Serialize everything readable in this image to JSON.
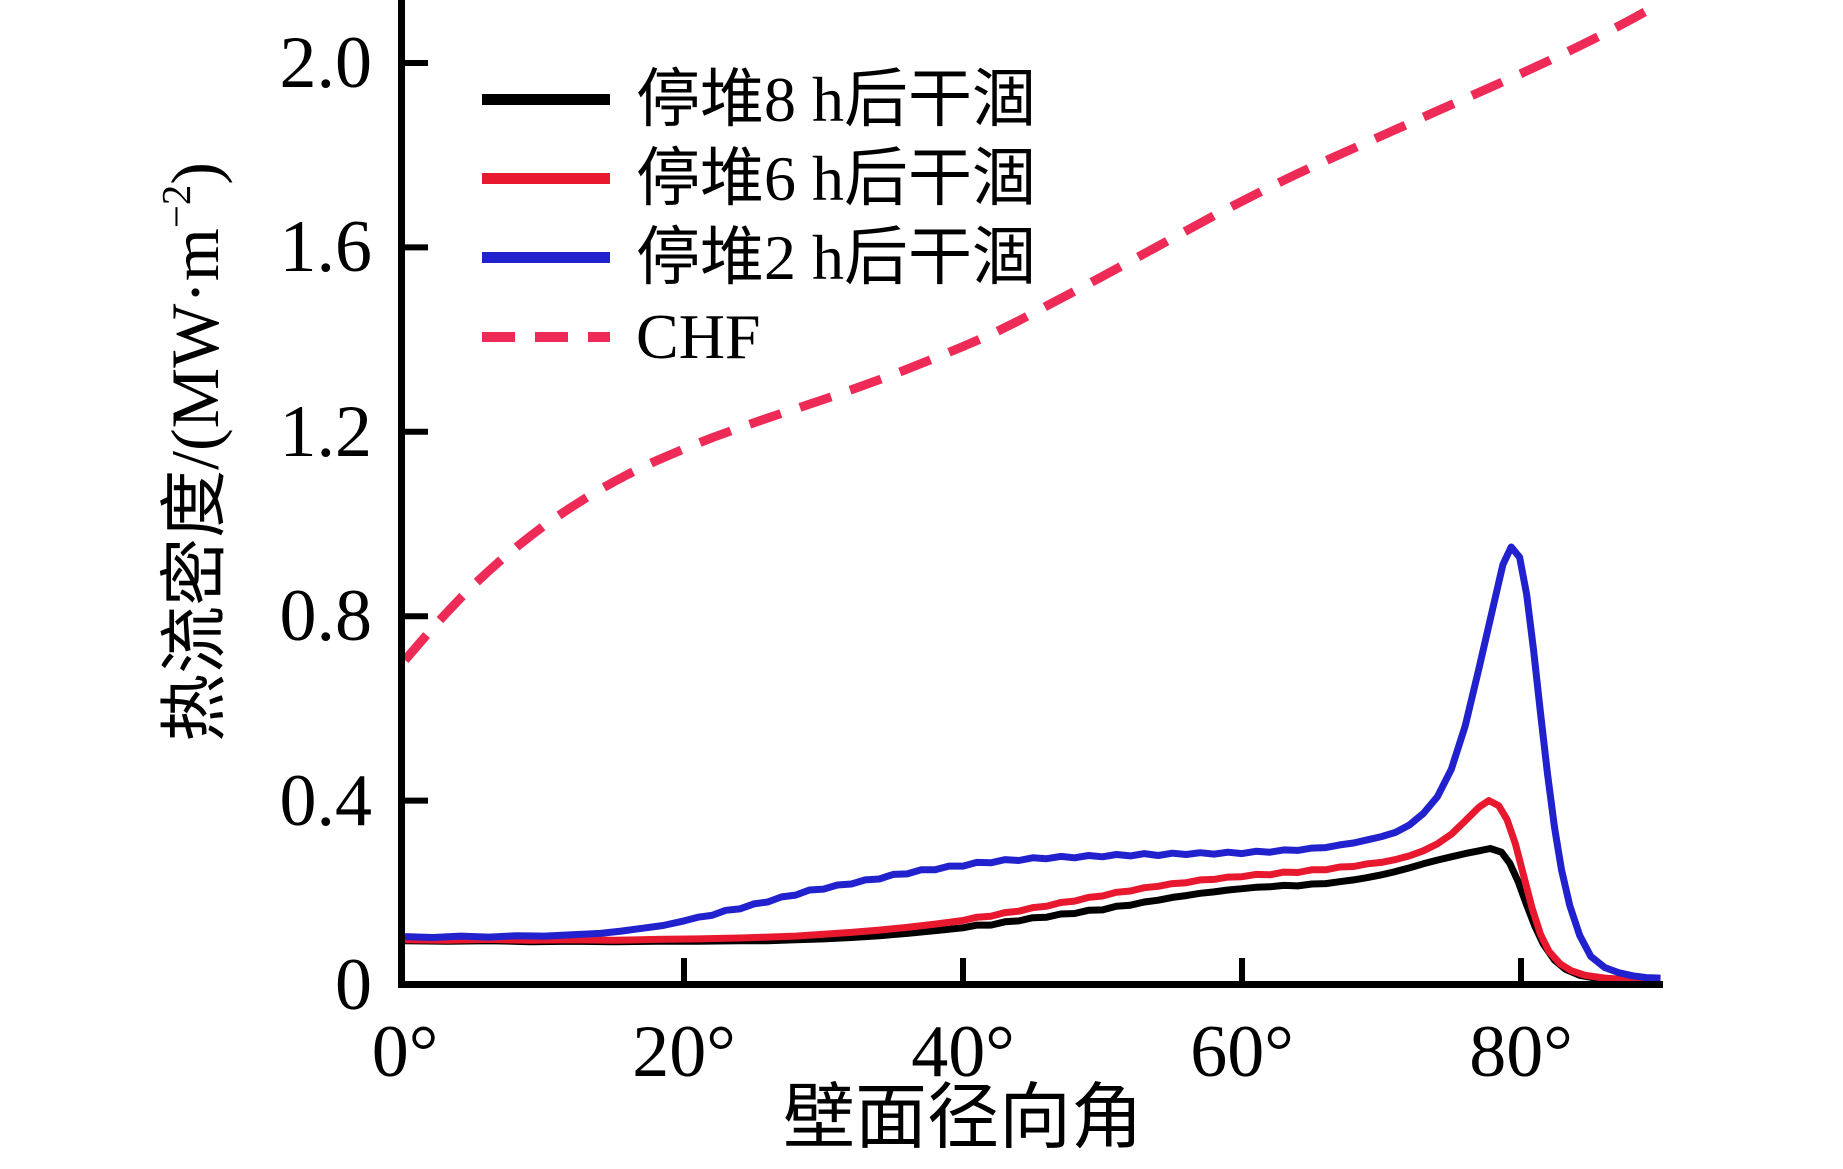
{
  "chart_data": {
    "type": "line",
    "title": "",
    "xlabel": "壁面径向角",
    "ylabel": "热流密度/(MW·m−2)",
    "xlim": [
      0,
      90
    ],
    "ylim": [
      0,
      2.14
    ],
    "grid": false,
    "legend_position": "upper-left-inside",
    "x_ticks": {
      "values": [
        0,
        20,
        40,
        60,
        80
      ],
      "labels": [
        "0°",
        "20°",
        "40°",
        "60°",
        "80°"
      ],
      "marks": [
        20,
        40,
        60,
        80
      ]
    },
    "y_ticks": {
      "values": [
        0,
        0.4,
        0.8,
        1.2,
        1.6,
        2.0
      ],
      "labels": [
        "0",
        "0.4",
        "0.8",
        "1.2",
        "1.6",
        "2.0"
      ],
      "marks": [
        0.4,
        0.8,
        1.2,
        1.6,
        2.0
      ]
    },
    "series": [
      {
        "name": "停堆8 h后干涸",
        "color": "#000000",
        "style": "solid",
        "width": 7,
        "points": [
          [
            0,
            0.096
          ],
          [
            3,
            0.095
          ],
          [
            6,
            0.096
          ],
          [
            9,
            0.094
          ],
          [
            12,
            0.095
          ],
          [
            15,
            0.094
          ],
          [
            18,
            0.095
          ],
          [
            21,
            0.095
          ],
          [
            24,
            0.096
          ],
          [
            26,
            0.096
          ],
          [
            28,
            0.098
          ],
          [
            30,
            0.1
          ],
          [
            32,
            0.103
          ],
          [
            34,
            0.107
          ],
          [
            36,
            0.112
          ],
          [
            38,
            0.118
          ],
          [
            40,
            0.124
          ],
          [
            41,
            0.13
          ],
          [
            42,
            0.13
          ],
          [
            43,
            0.137
          ],
          [
            44,
            0.139
          ],
          [
            45,
            0.146
          ],
          [
            46,
            0.147
          ],
          [
            47,
            0.154
          ],
          [
            48,
            0.155
          ],
          [
            49,
            0.162
          ],
          [
            50,
            0.163
          ],
          [
            51,
            0.171
          ],
          [
            52,
            0.173
          ],
          [
            53,
            0.18
          ],
          [
            54,
            0.184
          ],
          [
            55,
            0.19
          ],
          [
            56,
            0.194
          ],
          [
            57,
            0.199
          ],
          [
            58,
            0.202
          ],
          [
            59,
            0.206
          ],
          [
            60,
            0.209
          ],
          [
            61,
            0.212
          ],
          [
            62,
            0.213
          ],
          [
            63,
            0.216
          ],
          [
            64,
            0.215
          ],
          [
            65,
            0.219
          ],
          [
            66,
            0.22
          ],
          [
            67,
            0.224
          ],
          [
            68,
            0.228
          ],
          [
            69,
            0.233
          ],
          [
            70,
            0.239
          ],
          [
            71,
            0.246
          ],
          [
            72,
            0.254
          ],
          [
            73,
            0.263
          ],
          [
            74,
            0.271
          ],
          [
            75,
            0.278
          ],
          [
            76,
            0.285
          ],
          [
            77,
            0.291
          ],
          [
            77.8,
            0.296
          ],
          [
            78.6,
            0.288
          ],
          [
            79.2,
            0.264
          ],
          [
            79.8,
            0.224
          ],
          [
            80.4,
            0.174
          ],
          [
            81,
            0.127
          ],
          [
            81.6,
            0.089
          ],
          [
            82.4,
            0.054
          ],
          [
            83.2,
            0.034
          ],
          [
            84.2,
            0.021
          ],
          [
            85.5,
            0.014
          ],
          [
            87,
            0.012
          ],
          [
            88.5,
            0.011
          ],
          [
            90,
            0.01
          ]
        ]
      },
      {
        "name": "停堆6 h后干涸",
        "color": "#e8192e",
        "style": "solid",
        "width": 7,
        "points": [
          [
            0,
            0.098
          ],
          [
            3,
            0.097
          ],
          [
            6,
            0.099
          ],
          [
            9,
            0.097
          ],
          [
            12,
            0.098
          ],
          [
            15,
            0.097
          ],
          [
            18,
            0.099
          ],
          [
            21,
            0.1
          ],
          [
            24,
            0.102
          ],
          [
            26,
            0.104
          ],
          [
            28,
            0.106
          ],
          [
            30,
            0.11
          ],
          [
            32,
            0.114
          ],
          [
            34,
            0.119
          ],
          [
            36,
            0.125
          ],
          [
            38,
            0.132
          ],
          [
            40,
            0.14
          ],
          [
            41,
            0.147
          ],
          [
            42,
            0.149
          ],
          [
            43,
            0.157
          ],
          [
            44,
            0.16
          ],
          [
            45,
            0.168
          ],
          [
            46,
            0.171
          ],
          [
            47,
            0.179
          ],
          [
            48,
            0.182
          ],
          [
            49,
            0.19
          ],
          [
            50,
            0.193
          ],
          [
            51,
            0.201
          ],
          [
            52,
            0.204
          ],
          [
            53,
            0.211
          ],
          [
            54,
            0.214
          ],
          [
            55,
            0.22
          ],
          [
            56,
            0.222
          ],
          [
            57,
            0.228
          ],
          [
            58,
            0.229
          ],
          [
            59,
            0.234
          ],
          [
            60,
            0.235
          ],
          [
            61,
            0.24
          ],
          [
            62,
            0.239
          ],
          [
            63,
            0.245
          ],
          [
            64,
            0.244
          ],
          [
            65,
            0.25
          ],
          [
            66,
            0.25
          ],
          [
            67,
            0.256
          ],
          [
            68,
            0.257
          ],
          [
            69,
            0.263
          ],
          [
            70,
            0.266
          ],
          [
            71,
            0.272
          ],
          [
            72,
            0.28
          ],
          [
            73,
            0.291
          ],
          [
            74,
            0.306
          ],
          [
            75,
            0.327
          ],
          [
            76,
            0.356
          ],
          [
            77,
            0.386
          ],
          [
            77.7,
            0.4
          ],
          [
            78.4,
            0.389
          ],
          [
            79,
            0.359
          ],
          [
            79.6,
            0.306
          ],
          [
            80.2,
            0.236
          ],
          [
            80.8,
            0.166
          ],
          [
            81.4,
            0.11
          ],
          [
            82,
            0.073
          ],
          [
            82.8,
            0.046
          ],
          [
            83.6,
            0.031
          ],
          [
            84.6,
            0.021
          ],
          [
            86,
            0.015
          ],
          [
            88,
            0.011
          ],
          [
            90,
            0.01
          ]
        ]
      },
      {
        "name": "停堆2 h后干涸",
        "color": "#2121cd",
        "style": "solid",
        "width": 7,
        "points": [
          [
            0,
            0.105
          ],
          [
            2,
            0.103
          ],
          [
            4,
            0.106
          ],
          [
            6,
            0.104
          ],
          [
            8,
            0.107
          ],
          [
            10,
            0.106
          ],
          [
            12,
            0.109
          ],
          [
            14,
            0.112
          ],
          [
            15.5,
            0.117
          ],
          [
            17,
            0.123
          ],
          [
            18.5,
            0.129
          ],
          [
            20,
            0.139
          ],
          [
            21,
            0.147
          ],
          [
            22,
            0.151
          ],
          [
            23,
            0.162
          ],
          [
            24,
            0.165
          ],
          [
            25,
            0.176
          ],
          [
            26,
            0.18
          ],
          [
            27,
            0.191
          ],
          [
            28,
            0.195
          ],
          [
            29,
            0.206
          ],
          [
            30,
            0.208
          ],
          [
            31,
            0.217
          ],
          [
            32,
            0.219
          ],
          [
            33,
            0.228
          ],
          [
            34,
            0.23
          ],
          [
            35,
            0.24
          ],
          [
            36,
            0.241
          ],
          [
            37,
            0.25
          ],
          [
            38,
            0.25
          ],
          [
            39,
            0.258
          ],
          [
            40,
            0.258
          ],
          [
            41,
            0.266
          ],
          [
            42,
            0.265
          ],
          [
            43,
            0.272
          ],
          [
            44,
            0.27
          ],
          [
            45,
            0.276
          ],
          [
            46,
            0.274
          ],
          [
            47,
            0.279
          ],
          [
            48,
            0.276
          ],
          [
            49,
            0.281
          ],
          [
            50,
            0.278
          ],
          [
            51,
            0.283
          ],
          [
            52,
            0.28
          ],
          [
            53,
            0.285
          ],
          [
            54,
            0.281
          ],
          [
            55,
            0.286
          ],
          [
            56,
            0.283
          ],
          [
            57,
            0.287
          ],
          [
            58,
            0.284
          ],
          [
            59,
            0.288
          ],
          [
            60,
            0.285
          ],
          [
            61,
            0.29
          ],
          [
            62,
            0.288
          ],
          [
            63,
            0.293
          ],
          [
            64,
            0.292
          ],
          [
            65,
            0.297
          ],
          [
            66,
            0.298
          ],
          [
            67,
            0.304
          ],
          [
            68,
            0.308
          ],
          [
            69,
            0.315
          ],
          [
            70,
            0.322
          ],
          [
            71,
            0.331
          ],
          [
            72,
            0.347
          ],
          [
            73,
            0.372
          ],
          [
            74,
            0.408
          ],
          [
            75,
            0.468
          ],
          [
            76,
            0.562
          ],
          [
            77,
            0.688
          ],
          [
            78,
            0.82
          ],
          [
            78.7,
            0.912
          ],
          [
            79.3,
            0.95
          ],
          [
            79.9,
            0.928
          ],
          [
            80.4,
            0.848
          ],
          [
            80.9,
            0.726
          ],
          [
            81.4,
            0.59
          ],
          [
            81.9,
            0.458
          ],
          [
            82.4,
            0.342
          ],
          [
            82.9,
            0.25
          ],
          [
            83.5,
            0.172
          ],
          [
            84.2,
            0.108
          ],
          [
            85,
            0.062
          ],
          [
            86,
            0.038
          ],
          [
            87,
            0.027
          ],
          [
            88,
            0.02
          ],
          [
            89,
            0.016
          ],
          [
            90,
            0.015
          ]
        ]
      },
      {
        "name": "CHF",
        "color": "#ee2b57",
        "style": "dashed",
        "width": 9,
        "points": [
          [
            0,
            0.705
          ],
          [
            1,
            0.74
          ],
          [
            2,
            0.775
          ],
          [
            3,
            0.808
          ],
          [
            4,
            0.84
          ],
          [
            5,
            0.87
          ],
          [
            6,
            0.898
          ],
          [
            7,
            0.925
          ],
          [
            8,
            0.95
          ],
          [
            9,
            0.974
          ],
          [
            10,
            0.997
          ],
          [
            11,
            1.018
          ],
          [
            12,
            1.038
          ],
          [
            13,
            1.057
          ],
          [
            14,
            1.075
          ],
          [
            15,
            1.092
          ],
          [
            16,
            1.108
          ],
          [
            17,
            1.123
          ],
          [
            18,
            1.137
          ],
          [
            19,
            1.15
          ],
          [
            20,
            1.163
          ],
          [
            22,
            1.187
          ],
          [
            24,
            1.209
          ],
          [
            26,
            1.23
          ],
          [
            28,
            1.25
          ],
          [
            30,
            1.27
          ],
          [
            32,
            1.291
          ],
          [
            34,
            1.313
          ],
          [
            36,
            1.336
          ],
          [
            38,
            1.36
          ],
          [
            40,
            1.385
          ],
          [
            42,
            1.411
          ],
          [
            44,
            1.441
          ],
          [
            46,
            1.473
          ],
          [
            48,
            1.505
          ],
          [
            50,
            1.537
          ],
          [
            52,
            1.57
          ],
          [
            54,
            1.603
          ],
          [
            56,
            1.636
          ],
          [
            58,
            1.669
          ],
          [
            60,
            1.7
          ],
          [
            62,
            1.731
          ],
          [
            64,
            1.76
          ],
          [
            66,
            1.788
          ],
          [
            68,
            1.815
          ],
          [
            70,
            1.842
          ],
          [
            72,
            1.869
          ],
          [
            74,
            1.896
          ],
          [
            76,
            1.923
          ],
          [
            78,
            1.95
          ],
          [
            80,
            1.977
          ],
          [
            82,
            2.005
          ],
          [
            84,
            2.034
          ],
          [
            86,
            2.064
          ],
          [
            88,
            2.096
          ],
          [
            90,
            2.13
          ]
        ]
      }
    ]
  },
  "labels": {
    "x_axis_title": "壁面径向角",
    "y_axis_title_prefix": "热流密度/(MW·m",
    "y_axis_title_superscript": "−2",
    "y_axis_title_suffix": ")"
  }
}
